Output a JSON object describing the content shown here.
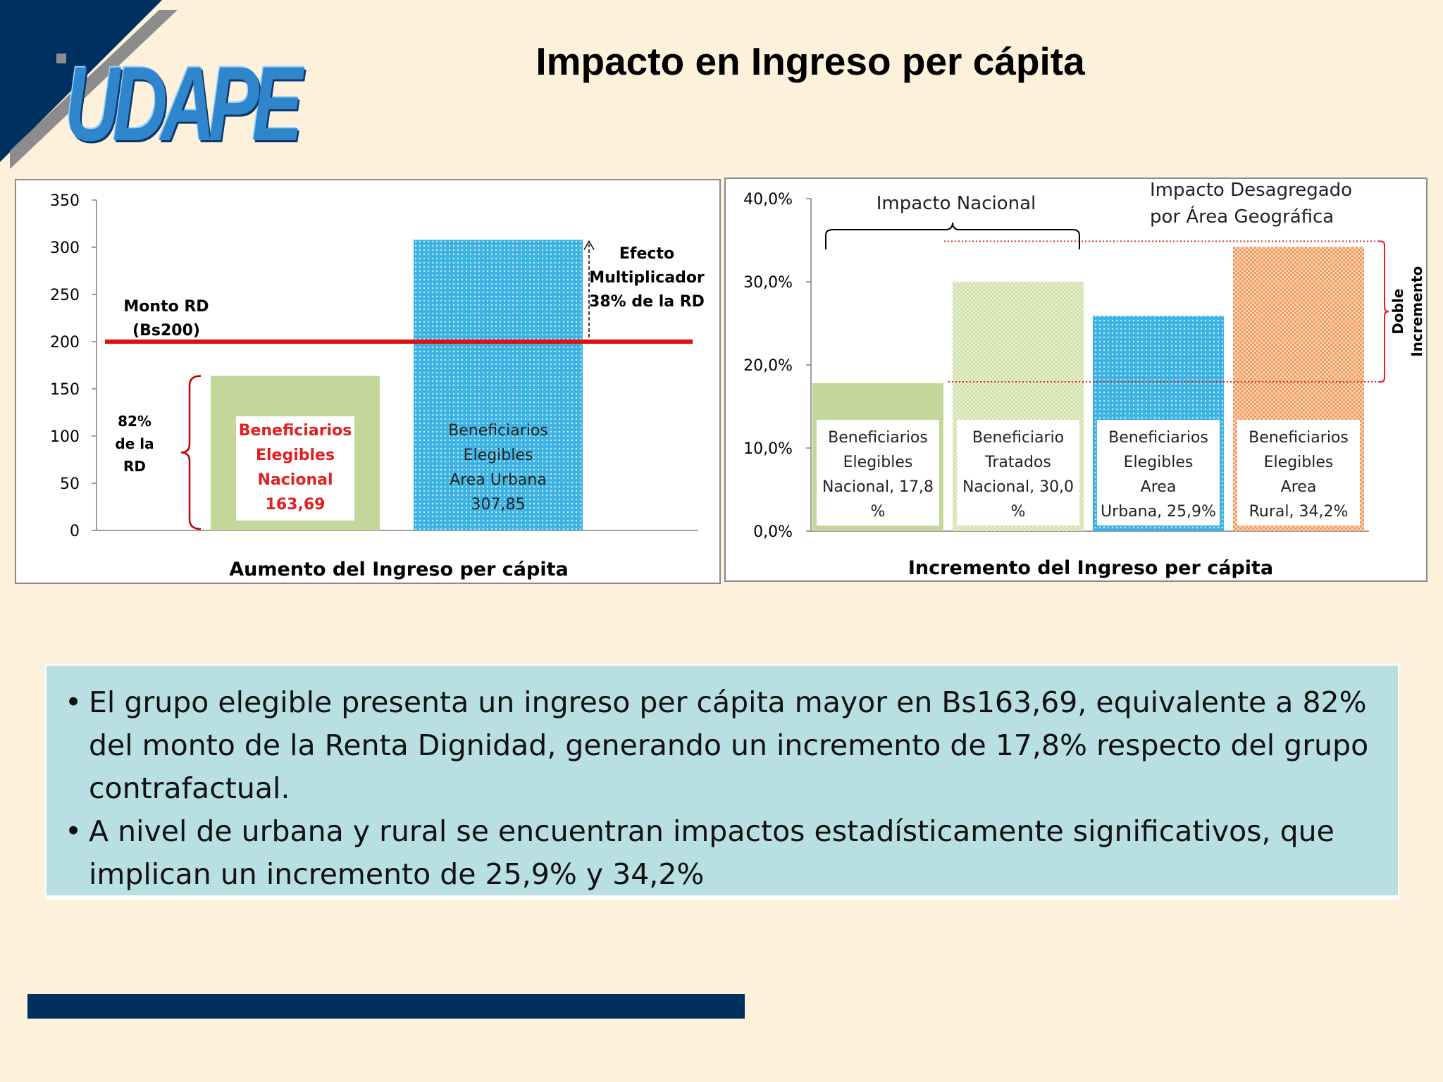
{
  "title": "Impacto en Ingreso per cápita",
  "logo": {
    "text": "UDAPE",
    "colors": {
      "navy": "#00305f",
      "blue": "#2f86cc",
      "grey": "#8c8c8c"
    }
  },
  "colors": {
    "green": "#c4d79b",
    "blue": "#3db3e3",
    "light_green": "#d9e8b8",
    "orange": "#f4a16b",
    "red_line": "#e01010",
    "bracket": "#c00000"
  },
  "chart_data": [
    {
      "type": "bar",
      "xlabel": "Aumento del Ingreso per cápita",
      "ylim": [
        0,
        350
      ],
      "yticks": [
        0,
        50,
        100,
        150,
        200,
        250,
        300,
        350
      ],
      "yticklabels": [
        "0",
        "50",
        "100",
        "150",
        "200",
        "250",
        "300",
        "350"
      ],
      "categories": [
        "Beneficiarios Elegibles Nacional",
        "Beneficiarios Elegibles Area Urbana"
      ],
      "values": [
        163.69,
        307.85
      ],
      "bar_labels": [
        [
          "Beneficiarios",
          "Elegibles",
          "Nacional",
          "163,69"
        ],
        [
          "Beneficiarios",
          "Elegibles",
          "Area Urbana",
          "307,85"
        ]
      ],
      "reference_line": {
        "value": 200,
        "label": [
          "Monto RD",
          "(Bs200)"
        ]
      },
      "bracket_annotation": [
        "82%",
        "de la",
        "RD"
      ],
      "arrow_annotation": [
        "Efecto",
        "Multiplicador",
        "38% de la RD"
      ]
    },
    {
      "type": "bar",
      "xlabel": "Incremento del Ingreso per cápita",
      "ylim": [
        0,
        40
      ],
      "yticks": [
        0,
        10,
        20,
        30,
        40
      ],
      "yticklabels": [
        "0,0%",
        "10,0%",
        "20,0%",
        "30,0%",
        "40,0%"
      ],
      "categories": [
        "Beneficiarios Elegibles Nacional",
        "Beneficiario Tratados Nacional",
        "Beneficiarios Elegibles Area Urbana",
        "Beneficiarios Elegibles Area Rural"
      ],
      "values": [
        17.8,
        30.0,
        25.9,
        34.2
      ],
      "bar_labels": [
        [
          "Beneficiarios",
          "Elegibles",
          "Nacional, 17,8",
          "%"
        ],
        [
          "Beneficiario",
          "Tratados",
          "Nacional, 30,0",
          "%"
        ],
        [
          "Beneficiarios",
          "Elegibles",
          "Area",
          "Urbana, 25,9%"
        ],
        [
          "Beneficiarios",
          "Elegibles",
          "Area",
          "Rural, 34,2%"
        ]
      ],
      "annotations": {
        "national": "Impacto Nacional",
        "disaggregated": [
          "Impacto Desagregado",
          "por Área Geográfica"
        ],
        "double": [
          "Doble",
          "Incremento"
        ]
      }
    }
  ],
  "bullets": [
    "El grupo elegible presenta un ingreso per cápita mayor en Bs163,69, equivalente a 82% del monto de la Renta Dignidad, generando un incremento de 17,8%  respecto del grupo contrafactual.",
    "A nivel de urbana y rural se encuentran impactos estadísticamente significativos, que implican un incremento de 25,9% y 34,2%"
  ]
}
